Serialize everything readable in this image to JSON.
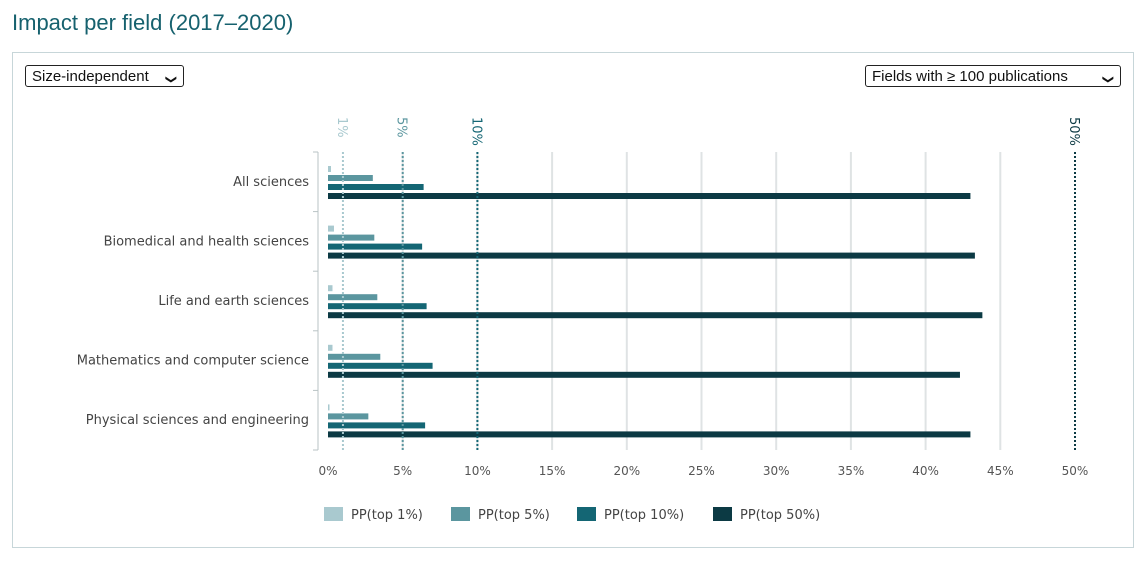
{
  "page": {
    "title": "Impact per field (2017–2020)"
  },
  "controls": {
    "indicator_select": "Size-independent",
    "filter_select": "Fields with ≥ 100 publications"
  },
  "chart_data": {
    "type": "bar",
    "orientation": "horizontal",
    "categories": [
      "All sciences",
      "Biomedical and health sciences",
      "Life and earth sciences",
      "Mathematics and computer science",
      "Physical sciences and engineering"
    ],
    "series": [
      {
        "name": "PP(top 1%)",
        "color": "#a9c9cf",
        "values": [
          0.2,
          0.4,
          0.3,
          0.3,
          0.1
        ]
      },
      {
        "name": "PP(top 5%)",
        "color": "#5b969f",
        "values": [
          3.0,
          3.1,
          3.3,
          3.5,
          2.7
        ]
      },
      {
        "name": "PP(top 10%)",
        "color": "#146674",
        "values": [
          6.4,
          6.3,
          6.6,
          7.0,
          6.5
        ]
      },
      {
        "name": "PP(top 50%)",
        "color": "#0c3a44",
        "values": [
          43.0,
          43.3,
          43.8,
          42.3,
          43.0
        ]
      }
    ],
    "xlim": [
      0,
      50
    ],
    "xticks": [
      "0%",
      "5%",
      "10%",
      "15%",
      "20%",
      "25%",
      "30%",
      "35%",
      "40%",
      "45%",
      "50%"
    ],
    "reference_lines": [
      {
        "label": "1%",
        "value": 1,
        "color": "#a9c9cf"
      },
      {
        "label": "5%",
        "value": 5,
        "color": "#5b969f"
      },
      {
        "label": "10%",
        "value": 10,
        "color": "#146674"
      },
      {
        "label": "50%",
        "value": 50,
        "color": "#0c3a44"
      }
    ],
    "grid": true,
    "legend_position": "bottom"
  }
}
